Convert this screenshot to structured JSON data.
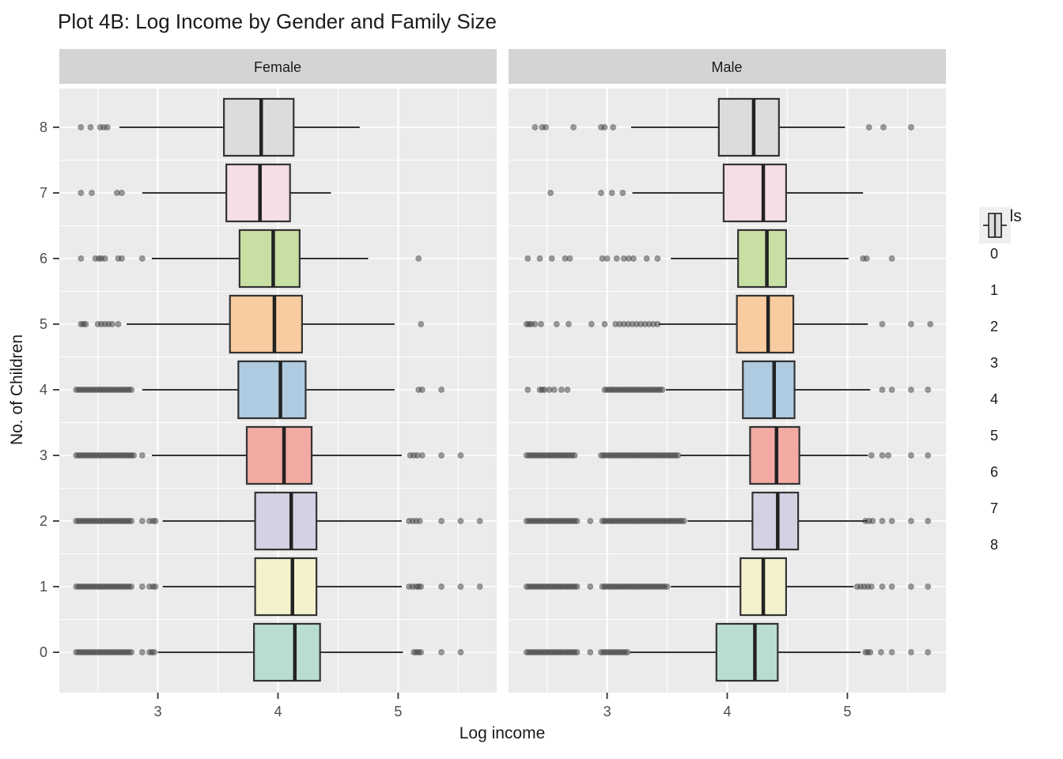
{
  "title": "Plot 4B: Log Income by Gender and Family Size",
  "x_axis": {
    "title": "Log income",
    "tick_labels": [
      "3",
      "4",
      "5"
    ],
    "tick_values": [
      3,
      4,
      5
    ]
  },
  "y_axis": {
    "title": "No. of Children",
    "tick_labels": [
      "0",
      "1",
      "2",
      "3",
      "4",
      "5",
      "6",
      "7",
      "8"
    ],
    "tick_values": [
      0,
      1,
      2,
      3,
      4,
      5,
      6,
      7,
      8
    ]
  },
  "legend": {
    "title": "childs",
    "items": [
      "0",
      "1",
      "2",
      "3",
      "4",
      "5",
      "6",
      "7",
      "8"
    ]
  },
  "colors": {
    "panel_bg": "#EBEBEB",
    "strip_bg": "#D4D4D4",
    "grid": "#FFFFFF",
    "box_stroke": "#333333",
    "median": "#222222",
    "whisker": "#333333",
    "outlier": "#3A3A3A",
    "tick_label": "#4D4D4D",
    "text": "#1A1A1A",
    "legend_key_bg": "#EFEFEF"
  },
  "chart_data": {
    "type": "boxplot",
    "orientation": "horizontal",
    "title": "Plot 4B: Log Income by Gender and Family Size",
    "xlabel": "Log income",
    "ylabel": "No. of Children",
    "legend_title": "childs",
    "x_domain": [
      2.18,
      5.82
    ],
    "x_major_gridlines": [
      3,
      4,
      5
    ],
    "x_minor_gridlines": [
      2.5,
      3.5,
      4.5,
      5.5
    ],
    "palette": {
      "0": "#BADDD3",
      "1": "#F4F2CC",
      "2": "#D5D1E2",
      "3": "#F2AAA2",
      "4": "#AFCBE1",
      "5": "#F8CCA0",
      "6": "#C8DFA4",
      "7": "#F6DEE9",
      "8": "#DCDCDC"
    },
    "facets": [
      {
        "label": "Female",
        "boxes": [
          {
            "childs": 0,
            "whisker_low": 3.0,
            "q1": 3.8,
            "median": 4.14,
            "q3": 4.35,
            "whisker_high": 5.04,
            "outliers": [
              {
                "from": 2.32,
                "to": 2.78,
                "step": 0.02
              },
              2.87,
              2.93,
              2.95,
              2.97,
              5.13,
              5.15,
              5.17,
              5.19,
              5.36,
              5.52
            ]
          },
          {
            "childs": 1,
            "whisker_low": 3.04,
            "q1": 3.81,
            "median": 4.12,
            "q3": 4.32,
            "whisker_high": 5.03,
            "outliers": [
              {
                "from": 2.32,
                "to": 2.78,
                "step": 0.02
              },
              2.87,
              2.93,
              2.96,
              2.98,
              5.09,
              5.12,
              5.15,
              5.17,
              5.19,
              5.36,
              5.52,
              5.68
            ]
          },
          {
            "childs": 2,
            "whisker_low": 3.04,
            "q1": 3.81,
            "median": 4.11,
            "q3": 4.32,
            "whisker_high": 5.03,
            "outliers": [
              {
                "from": 2.32,
                "to": 2.78,
                "step": 0.02
              },
              2.87,
              2.93,
              2.96,
              2.98,
              5.09,
              5.12,
              5.15,
              5.18,
              5.36,
              5.52,
              5.68
            ]
          },
          {
            "childs": 3,
            "whisker_low": 2.95,
            "q1": 3.74,
            "median": 4.05,
            "q3": 4.28,
            "whisker_high": 5.03,
            "outliers": [
              {
                "from": 2.32,
                "to": 2.8,
                "step": 0.02
              },
              2.87,
              5.1,
              5.13,
              5.16,
              5.2,
              5.36,
              5.52
            ]
          },
          {
            "childs": 4,
            "whisker_low": 2.87,
            "q1": 3.67,
            "median": 4.02,
            "q3": 4.23,
            "whisker_high": 4.97,
            "outliers": [
              {
                "from": 2.32,
                "to": 2.78,
                "step": 0.02
              },
              5.17,
              5.2,
              5.36
            ]
          },
          {
            "childs": 5,
            "whisker_low": 2.74,
            "q1": 3.6,
            "median": 3.97,
            "q3": 4.2,
            "whisker_high": 4.97,
            "outliers": [
              2.36,
              2.38,
              2.4,
              2.5,
              2.53,
              2.56,
              2.59,
              2.62,
              2.67,
              5.19
            ]
          },
          {
            "childs": 6,
            "whisker_low": 2.95,
            "q1": 3.68,
            "median": 3.96,
            "q3": 4.18,
            "whisker_high": 4.75,
            "outliers": [
              2.36,
              2.48,
              2.51,
              2.53,
              2.56,
              2.67,
              2.7,
              2.87,
              5.17
            ]
          },
          {
            "childs": 7,
            "whisker_low": 2.87,
            "q1": 3.57,
            "median": 3.85,
            "q3": 4.1,
            "whisker_high": 4.44,
            "outliers": [
              2.36,
              2.45,
              2.66,
              2.7
            ]
          },
          {
            "childs": 8,
            "whisker_low": 2.68,
            "q1": 3.55,
            "median": 3.86,
            "q3": 4.13,
            "whisker_high": 4.68,
            "outliers": [
              2.36,
              2.44,
              2.52,
              2.55,
              2.58
            ]
          }
        ]
      },
      {
        "label": "Male",
        "boxes": [
          {
            "childs": 0,
            "whisker_low": 3.19,
            "q1": 3.91,
            "median": 4.23,
            "q3": 4.42,
            "whisker_high": 5.11,
            "outliers": [
              {
                "from": 2.33,
                "to": 2.75,
                "step": 0.02
              },
              2.86,
              {
                "from": 2.95,
                "to": 3.17,
                "step": 0.02
              },
              5.15,
              5.17,
              5.19,
              5.28,
              5.37,
              5.53,
              5.67
            ]
          },
          {
            "childs": 1,
            "whisker_low": 3.53,
            "q1": 4.11,
            "median": 4.3,
            "q3": 4.49,
            "whisker_high": 5.05,
            "outliers": [
              {
                "from": 2.33,
                "to": 2.75,
                "step": 0.02
              },
              2.86,
              {
                "from": 2.96,
                "to": 3.5,
                "step": 0.02
              },
              5.08,
              5.11,
              5.14,
              5.17,
              5.2,
              5.29,
              5.37,
              5.53,
              5.67
            ]
          },
          {
            "childs": 2,
            "whisker_low": 3.67,
            "q1": 4.21,
            "median": 4.42,
            "q3": 4.59,
            "whisker_high": 5.16,
            "outliers": [
              {
                "from": 2.33,
                "to": 2.75,
                "step": 0.02
              },
              2.86,
              {
                "from": 2.96,
                "to": 3.64,
                "step": 0.02
              },
              5.15,
              5.18,
              5.21,
              5.29,
              5.37,
              5.53,
              5.67
            ]
          },
          {
            "childs": 3,
            "whisker_low": 3.61,
            "q1": 4.19,
            "median": 4.41,
            "q3": 4.6,
            "whisker_high": 5.17,
            "outliers": [
              {
                "from": 2.33,
                "to": 2.73,
                "step": 0.02
              },
              {
                "from": 2.95,
                "to": 3.59,
                "step": 0.02
              },
              5.2,
              5.29,
              5.34,
              5.53,
              5.67
            ]
          },
          {
            "childs": 4,
            "whisker_low": 3.49,
            "q1": 4.13,
            "median": 4.39,
            "q3": 4.56,
            "whisker_high": 5.19,
            "outliers": [
              2.34,
              2.44,
              2.46,
              2.48,
              2.52,
              2.56,
              2.62,
              2.67,
              {
                "from": 2.98,
                "to": 3.46,
                "step": 0.02
              },
              5.29,
              5.37,
              5.53,
              5.67
            ]
          },
          {
            "childs": 5,
            "whisker_low": 3.43,
            "q1": 4.08,
            "median": 4.34,
            "q3": 4.55,
            "whisker_high": 5.17,
            "outliers": [
              2.33,
              2.35,
              2.37,
              2.4,
              2.45,
              2.58,
              2.68,
              2.87,
              2.98,
              {
                "from": 3.07,
                "to": 3.42,
                "step": 0.035
              },
              5.29,
              5.53,
              5.69
            ]
          },
          {
            "childs": 6,
            "whisker_low": 3.53,
            "q1": 4.09,
            "median": 4.33,
            "q3": 4.49,
            "whisker_high": 5.01,
            "outliers": [
              2.34,
              2.44,
              2.54,
              2.65,
              2.69,
              2.96,
              3.0,
              3.08,
              3.14,
              3.18,
              3.22,
              3.33,
              3.42,
              5.13,
              5.16,
              5.37
            ]
          },
          {
            "childs": 7,
            "whisker_low": 3.21,
            "q1": 3.97,
            "median": 4.3,
            "q3": 4.49,
            "whisker_high": 5.13,
            "outliers": [
              2.53,
              2.95,
              3.04,
              3.13
            ]
          },
          {
            "childs": 8,
            "whisker_low": 3.2,
            "q1": 3.93,
            "median": 4.22,
            "q3": 4.43,
            "whisker_high": 4.98,
            "outliers": [
              2.4,
              2.46,
              2.49,
              2.72,
              2.95,
              2.98,
              3.05,
              5.18,
              5.3,
              5.53
            ]
          }
        ]
      }
    ]
  }
}
